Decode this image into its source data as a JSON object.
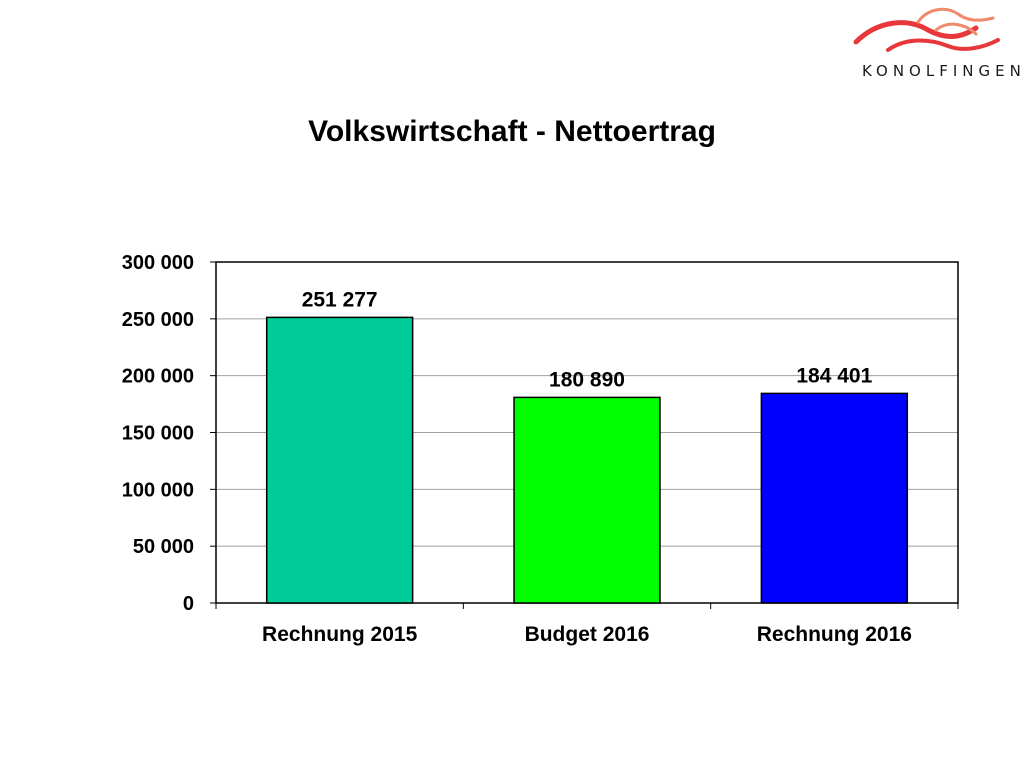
{
  "logo": {
    "text": "KONOLFINGEN"
  },
  "chart_data": {
    "type": "bar",
    "title": "Volkswirtschaft - Nettoertrag",
    "categories": [
      "Rechnung 2015",
      "Budget 2016",
      "Rechnung 2016"
    ],
    "values": [
      251277,
      180890,
      184401
    ],
    "value_labels": [
      "251 277",
      "180 890",
      "184 401"
    ],
    "colors": [
      "#00CC99",
      "#00FF00",
      "#0000FF"
    ],
    "ylim": [
      0,
      300000
    ],
    "yticks": [
      0,
      50000,
      100000,
      150000,
      200000,
      250000,
      300000
    ],
    "ytick_labels": [
      "0",
      "50 000",
      "100 000",
      "150 000",
      "200 000",
      "250 000",
      "300 000"
    ],
    "grid": true,
    "xlabel": "",
    "ylabel": ""
  }
}
